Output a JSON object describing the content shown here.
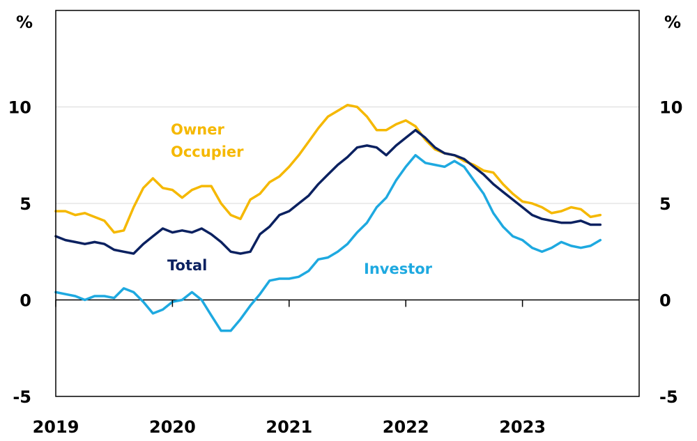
{
  "chart_data": {
    "type": "line",
    "title": "",
    "xlabel": "",
    "ylabel": "",
    "left_unit": "%",
    "right_unit": "%",
    "ylim": [
      -5,
      15
    ],
    "xlim": [
      2019.0,
      2024.0
    ],
    "y_ticks": [
      {
        "value": 10,
        "label": "10"
      },
      {
        "value": 5,
        "label": "5"
      },
      {
        "value": 0,
        "label": "0"
      },
      {
        "value": -5,
        "label": "-5"
      }
    ],
    "x_ticks": [
      {
        "value": 2019.0,
        "label": "2019"
      },
      {
        "value": 2020.0,
        "label": "2020"
      },
      {
        "value": 2021.0,
        "label": "2021"
      },
      {
        "value": 2022.0,
        "label": "2022"
      },
      {
        "value": 2023.0,
        "label": "2023"
      }
    ],
    "grid": true,
    "series": [
      {
        "name": "Owner Occupier",
        "label_lines": [
          "Owner",
          "Occupier"
        ],
        "color": "#F5B800",
        "x": [
          2019.0,
          2019.083,
          2019.167,
          2019.25,
          2019.333,
          2019.417,
          2019.5,
          2019.583,
          2019.667,
          2019.75,
          2019.833,
          2019.917,
          2020.0,
          2020.083,
          2020.167,
          2020.25,
          2020.333,
          2020.417,
          2020.5,
          2020.583,
          2020.667,
          2020.75,
          2020.833,
          2020.917,
          2021.0,
          2021.083,
          2021.167,
          2021.25,
          2021.333,
          2021.417,
          2021.5,
          2021.583,
          2021.667,
          2021.75,
          2021.833,
          2021.917,
          2022.0,
          2022.083,
          2022.167,
          2022.25,
          2022.333,
          2022.417,
          2022.5,
          2022.583,
          2022.667,
          2022.75,
          2022.833,
          2022.917,
          2023.0,
          2023.083,
          2023.167,
          2023.25,
          2023.333,
          2023.417,
          2023.5,
          2023.583,
          2023.667
        ],
        "values": [
          4.6,
          4.6,
          4.4,
          4.5,
          4.3,
          4.1,
          3.5,
          3.6,
          4.8,
          5.8,
          6.3,
          5.8,
          5.7,
          5.3,
          5.7,
          5.9,
          5.9,
          5.0,
          4.4,
          4.2,
          5.2,
          5.5,
          6.1,
          6.4,
          6.9,
          7.5,
          8.2,
          8.9,
          9.5,
          9.8,
          10.1,
          10.0,
          9.5,
          8.8,
          8.8,
          9.1,
          9.3,
          9.0,
          8.3,
          7.8,
          7.6,
          7.5,
          7.2,
          7.0,
          6.7,
          6.6,
          6.0,
          5.5,
          5.1,
          5.0,
          4.8,
          4.5,
          4.6,
          4.8,
          4.7,
          4.3,
          4.4
        ]
      },
      {
        "name": "Total",
        "label_lines": [
          "Total"
        ],
        "color": "#0B2160",
        "x": [
          2019.0,
          2019.083,
          2019.167,
          2019.25,
          2019.333,
          2019.417,
          2019.5,
          2019.583,
          2019.667,
          2019.75,
          2019.833,
          2019.917,
          2020.0,
          2020.083,
          2020.167,
          2020.25,
          2020.333,
          2020.417,
          2020.5,
          2020.583,
          2020.667,
          2020.75,
          2020.833,
          2020.917,
          2021.0,
          2021.083,
          2021.167,
          2021.25,
          2021.333,
          2021.417,
          2021.5,
          2021.583,
          2021.667,
          2021.75,
          2021.833,
          2021.917,
          2022.0,
          2022.083,
          2022.167,
          2022.25,
          2022.333,
          2022.417,
          2022.5,
          2022.583,
          2022.667,
          2022.75,
          2022.833,
          2022.917,
          2023.0,
          2023.083,
          2023.167,
          2023.25,
          2023.333,
          2023.417,
          2023.5,
          2023.583,
          2023.667
        ],
        "values": [
          3.3,
          3.1,
          3.0,
          2.9,
          3.0,
          2.9,
          2.6,
          2.5,
          2.4,
          2.9,
          3.3,
          3.7,
          3.5,
          3.6,
          3.5,
          3.7,
          3.4,
          3.0,
          2.5,
          2.4,
          2.5,
          3.4,
          3.8,
          4.4,
          4.6,
          5.0,
          5.4,
          6.0,
          6.5,
          7.0,
          7.4,
          7.9,
          8.0,
          7.9,
          7.5,
          8.0,
          8.4,
          8.8,
          8.4,
          7.9,
          7.6,
          7.5,
          7.3,
          6.9,
          6.5,
          6.0,
          5.6,
          5.2,
          4.8,
          4.4,
          4.2,
          4.1,
          4.0,
          4.0,
          4.1,
          3.9,
          3.9
        ]
      },
      {
        "name": "Investor",
        "label_lines": [
          "Investor"
        ],
        "color": "#1EA9E0",
        "x": [
          2019.0,
          2019.083,
          2019.167,
          2019.25,
          2019.333,
          2019.417,
          2019.5,
          2019.583,
          2019.667,
          2019.75,
          2019.833,
          2019.917,
          2020.0,
          2020.083,
          2020.167,
          2020.25,
          2020.333,
          2020.417,
          2020.5,
          2020.583,
          2020.667,
          2020.75,
          2020.833,
          2020.917,
          2021.0,
          2021.083,
          2021.167,
          2021.25,
          2021.333,
          2021.417,
          2021.5,
          2021.583,
          2021.667,
          2021.75,
          2021.833,
          2021.917,
          2022.0,
          2022.083,
          2022.167,
          2022.25,
          2022.333,
          2022.417,
          2022.5,
          2022.583,
          2022.667,
          2022.75,
          2022.833,
          2022.917,
          2023.0,
          2023.083,
          2023.167,
          2023.25,
          2023.333,
          2023.417,
          2023.5,
          2023.583,
          2023.667
        ],
        "values": [
          0.4,
          0.3,
          0.2,
          0.0,
          0.2,
          0.2,
          0.1,
          0.6,
          0.4,
          -0.1,
          -0.7,
          -0.5,
          -0.1,
          0.0,
          0.4,
          0.0,
          -0.8,
          -1.6,
          -1.6,
          -1.0,
          -0.3,
          0.3,
          1.0,
          1.1,
          1.1,
          1.2,
          1.5,
          2.1,
          2.2,
          2.5,
          2.9,
          3.5,
          4.0,
          4.8,
          5.3,
          6.2,
          6.9,
          7.5,
          7.1,
          7.0,
          6.9,
          7.2,
          6.9,
          6.2,
          5.5,
          4.5,
          3.8,
          3.3,
          3.1,
          2.7,
          2.5,
          2.7,
          3.0,
          2.8,
          2.7,
          2.8,
          3.1
        ]
      }
    ]
  }
}
